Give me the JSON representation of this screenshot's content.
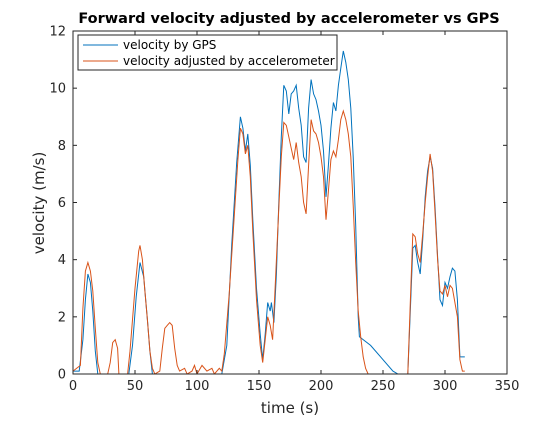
{
  "chart_data": {
    "type": "line",
    "title": "Forward velocity adjusted by accelerometer vs GPS",
    "xlabel": "time (s)",
    "ylabel": "velocity (m/s)",
    "xlim": [
      0,
      350
    ],
    "ylim": [
      0,
      12
    ],
    "xticks": [
      0,
      50,
      100,
      150,
      200,
      250,
      300,
      350
    ],
    "yticks": [
      0,
      2,
      4,
      6,
      8,
      10,
      12
    ],
    "xtick_labels": [
      "0",
      "50",
      "100",
      "150",
      "200",
      "250",
      "300",
      "350"
    ],
    "ytick_labels": [
      "0",
      "2",
      "4",
      "6",
      "8",
      "10",
      "12"
    ],
    "grid": false,
    "legend_position": "top-left",
    "series": [
      {
        "name": "velocity by GPS",
        "color": "#0072BD",
        "points": [
          [
            0,
            0.1
          ],
          [
            5,
            0.1
          ],
          [
            8,
            1.2
          ],
          [
            10,
            2.6
          ],
          [
            12,
            3.5
          ],
          [
            14,
            3.2
          ],
          [
            16,
            2.2
          ],
          [
            18,
            0.8
          ],
          [
            20,
            0
          ],
          [
            45,
            0
          ],
          [
            48,
            1.0
          ],
          [
            51,
            2.7
          ],
          [
            54,
            3.9
          ],
          [
            57,
            3.4
          ],
          [
            60,
            1.9
          ],
          [
            62,
            0.8
          ],
          [
            64,
            0
          ],
          [
            120,
            0
          ],
          [
            124,
            1.0
          ],
          [
            128,
            4.5
          ],
          [
            132,
            7.4
          ],
          [
            135,
            9.0
          ],
          [
            137,
            8.6
          ],
          [
            139,
            7.8
          ],
          [
            141,
            8.4
          ],
          [
            143,
            7.3
          ],
          [
            145,
            5.4
          ],
          [
            148,
            3.0
          ],
          [
            151,
            1.4
          ],
          [
            153,
            0.5
          ],
          [
            155,
            1.4
          ],
          [
            157,
            2.5
          ],
          [
            159,
            2.2
          ],
          [
            160,
            2.5
          ],
          [
            162,
            1.8
          ],
          [
            164,
            3.5
          ],
          [
            166,
            6.0
          ],
          [
            168,
            8.3
          ],
          [
            170,
            10.1
          ],
          [
            172,
            9.9
          ],
          [
            174,
            9.1
          ],
          [
            176,
            9.8
          ],
          [
            178,
            9.9
          ],
          [
            180,
            10.1
          ],
          [
            182,
            9.3
          ],
          [
            184,
            8.7
          ],
          [
            186,
            7.6
          ],
          [
            188,
            7.4
          ],
          [
            190,
            9.3
          ],
          [
            192,
            10.3
          ],
          [
            194,
            9.8
          ],
          [
            196,
            9.6
          ],
          [
            198,
            9.2
          ],
          [
            200,
            8.7
          ],
          [
            202,
            7.8
          ],
          [
            204,
            6.2
          ],
          [
            206,
            7.3
          ],
          [
            208,
            8.6
          ],
          [
            210,
            9.5
          ],
          [
            212,
            9.2
          ],
          [
            214,
            10.1
          ],
          [
            216,
            10.7
          ],
          [
            218,
            11.3
          ],
          [
            220,
            10.9
          ],
          [
            222,
            10.3
          ],
          [
            224,
            9.3
          ],
          [
            226,
            7.6
          ],
          [
            228,
            5.2
          ],
          [
            230,
            2.0
          ],
          [
            231,
            1.3
          ],
          [
            240,
            1.0
          ],
          [
            258,
            0.1
          ],
          [
            262,
            0
          ],
          [
            270,
            0
          ],
          [
            272,
            2.2
          ],
          [
            274,
            4.4
          ],
          [
            276,
            4.5
          ],
          [
            278,
            3.9
          ],
          [
            280,
            3.5
          ],
          [
            282,
            4.7
          ],
          [
            284,
            6.2
          ],
          [
            286,
            7.1
          ],
          [
            288,
            7.6
          ],
          [
            290,
            7.2
          ],
          [
            292,
            5.8
          ],
          [
            294,
            4.1
          ],
          [
            296,
            2.6
          ],
          [
            298,
            2.4
          ],
          [
            300,
            3.2
          ],
          [
            302,
            3.0
          ],
          [
            304,
            3.4
          ],
          [
            306,
            3.7
          ],
          [
            308,
            3.6
          ],
          [
            310,
            2.6
          ],
          [
            312,
            0.6
          ],
          [
            316,
            0.6
          ]
        ]
      },
      {
        "name": "velocity adjusted by accelerometer",
        "color": "#D95319",
        "points": [
          [
            0,
            0.1
          ],
          [
            6,
            0.3
          ],
          [
            8,
            2.3
          ],
          [
            10,
            3.6
          ],
          [
            12,
            3.9
          ],
          [
            14,
            3.6
          ],
          [
            16,
            2.9
          ],
          [
            18,
            1.6
          ],
          [
            20,
            0.4
          ],
          [
            22,
            0
          ],
          [
            28,
            0
          ],
          [
            30,
            0.4
          ],
          [
            32,
            1.1
          ],
          [
            34,
            1.2
          ],
          [
            36,
            0.9
          ],
          [
            37,
            0
          ],
          [
            44,
            0
          ],
          [
            46,
            0.8
          ],
          [
            50,
            3.0
          ],
          [
            53,
            4.3
          ],
          [
            54,
            4.5
          ],
          [
            56,
            4.0
          ],
          [
            58,
            2.9
          ],
          [
            60,
            1.9
          ],
          [
            62,
            0.8
          ],
          [
            64,
            0.2
          ],
          [
            66,
            0
          ],
          [
            70,
            0.1
          ],
          [
            72,
            0.9
          ],
          [
            74,
            1.6
          ],
          [
            76,
            1.7
          ],
          [
            78,
            1.8
          ],
          [
            80,
            1.7
          ],
          [
            82,
            0.9
          ],
          [
            84,
            0.3
          ],
          [
            86,
            0.1
          ],
          [
            90,
            0.2
          ],
          [
            92,
            0
          ],
          [
            96,
            0.1
          ],
          [
            98,
            0.3
          ],
          [
            100,
            0
          ],
          [
            104,
            0.3
          ],
          [
            108,
            0.1
          ],
          [
            112,
            0.2
          ],
          [
            114,
            0
          ],
          [
            118,
            0.2
          ],
          [
            120,
            0.1
          ],
          [
            122,
            0.7
          ],
          [
            126,
            2.8
          ],
          [
            130,
            5.5
          ],
          [
            133,
            7.5
          ],
          [
            135,
            8.6
          ],
          [
            137,
            8.4
          ],
          [
            139,
            7.7
          ],
          [
            141,
            8.0
          ],
          [
            143,
            6.9
          ],
          [
            145,
            5.0
          ],
          [
            148,
            2.6
          ],
          [
            151,
            1.0
          ],
          [
            153,
            0.4
          ],
          [
            155,
            1.2
          ],
          [
            157,
            2.0
          ],
          [
            159,
            1.7
          ],
          [
            161,
            1.2
          ],
          [
            163,
            3.0
          ],
          [
            166,
            5.8
          ],
          [
            168,
            7.6
          ],
          [
            170,
            8.8
          ],
          [
            172,
            8.7
          ],
          [
            174,
            8.3
          ],
          [
            176,
            7.9
          ],
          [
            178,
            7.5
          ],
          [
            180,
            8.1
          ],
          [
            182,
            7.4
          ],
          [
            184,
            6.9
          ],
          [
            186,
            6.0
          ],
          [
            188,
            5.6
          ],
          [
            190,
            7.3
          ],
          [
            192,
            8.9
          ],
          [
            194,
            8.5
          ],
          [
            196,
            8.4
          ],
          [
            198,
            8.1
          ],
          [
            200,
            7.6
          ],
          [
            202,
            6.9
          ],
          [
            204,
            5.4
          ],
          [
            206,
            6.4
          ],
          [
            208,
            7.5
          ],
          [
            210,
            7.8
          ],
          [
            212,
            7.6
          ],
          [
            214,
            8.2
          ],
          [
            216,
            8.9
          ],
          [
            218,
            9.2
          ],
          [
            220,
            8.9
          ],
          [
            222,
            8.4
          ],
          [
            224,
            7.6
          ],
          [
            226,
            5.9
          ],
          [
            228,
            3.9
          ],
          [
            230,
            2.2
          ],
          [
            232,
            1.3
          ],
          [
            234,
            0.6
          ],
          [
            236,
            0.2
          ],
          [
            238,
            0
          ],
          [
            270,
            0
          ],
          [
            272,
            2.5
          ],
          [
            274,
            4.9
          ],
          [
            276,
            4.8
          ],
          [
            278,
            4.2
          ],
          [
            280,
            3.9
          ],
          [
            282,
            4.9
          ],
          [
            284,
            6.0
          ],
          [
            286,
            6.9
          ],
          [
            288,
            7.7
          ],
          [
            290,
            7.1
          ],
          [
            292,
            5.6
          ],
          [
            294,
            4.0
          ],
          [
            296,
            2.9
          ],
          [
            298,
            2.8
          ],
          [
            300,
            3.1
          ],
          [
            302,
            2.7
          ],
          [
            304,
            3.1
          ],
          [
            306,
            3.0
          ],
          [
            308,
            2.5
          ],
          [
            310,
            2.0
          ],
          [
            312,
            0.5
          ],
          [
            314,
            0.1
          ],
          [
            316,
            0.1
          ]
        ]
      }
    ]
  }
}
